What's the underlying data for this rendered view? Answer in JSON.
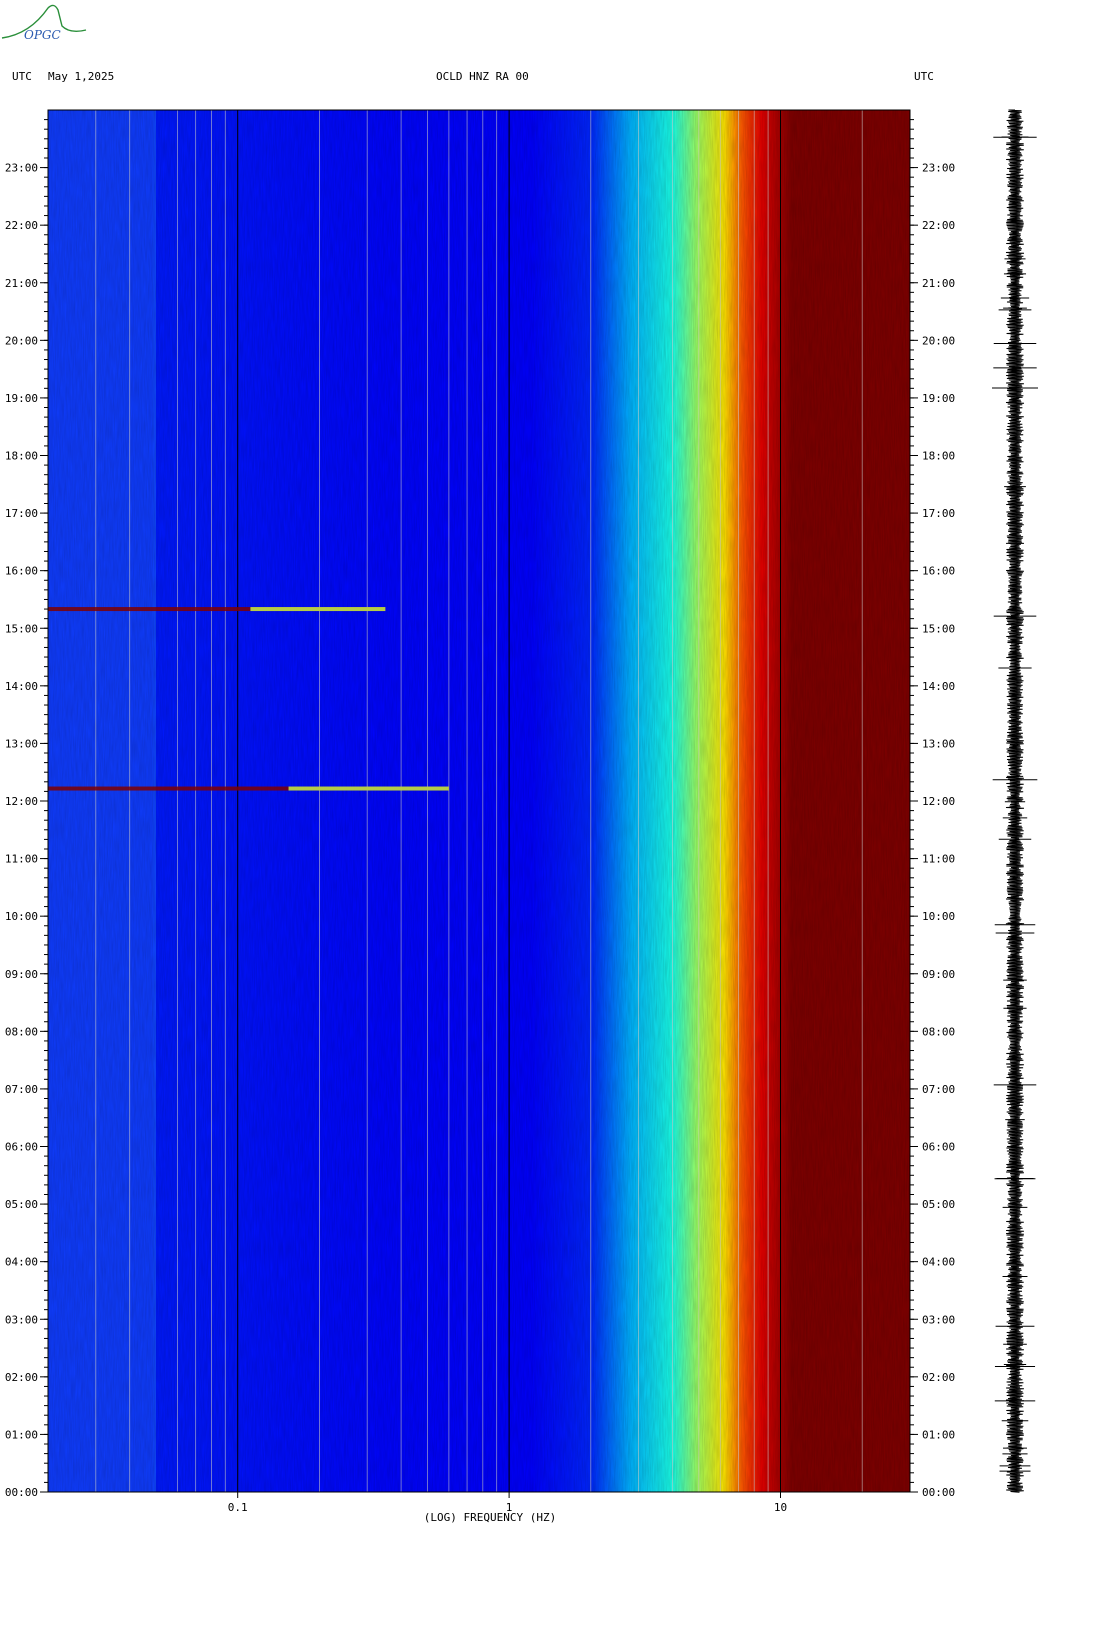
{
  "logo": {
    "text": "OPGC"
  },
  "header": {
    "left_label": "UTC",
    "date": "May 1,2025",
    "station": "OCLD HNZ RA 00",
    "right_label": "UTC"
  },
  "chart_data": {
    "type": "heatmap",
    "title": "OCLD HNZ RA 00",
    "xlabel": "(LOG) FREQUENCY (HZ)",
    "ylabel": "",
    "x_scale": "log",
    "xlim": [
      0.02,
      30
    ],
    "x_ticks": [
      {
        "value": 0.1,
        "label": "0.1"
      },
      {
        "value": 1,
        "label": "1"
      },
      {
        "value": 10,
        "label": "10"
      }
    ],
    "ylim": [
      "00:00",
      "24:00"
    ],
    "y_ticks": [
      "00:00",
      "01:00",
      "02:00",
      "03:00",
      "04:00",
      "05:00",
      "06:00",
      "07:00",
      "08:00",
      "09:00",
      "10:00",
      "11:00",
      "12:00",
      "13:00",
      "14:00",
      "15:00",
      "16:00",
      "17:00",
      "18:00",
      "19:00",
      "20:00",
      "21:00",
      "22:00",
      "23:00"
    ],
    "colormap": [
      "#00007f",
      "#0000ff",
      "#0080ff",
      "#00ffff",
      "#80ff80",
      "#ffff00",
      "#ff8000",
      "#ff0000",
      "#7f0000"
    ],
    "events": [
      {
        "time": "15:20",
        "freq_max_hz": 0.35
      },
      {
        "time": "12:13",
        "freq_max_hz": 0.6
      }
    ],
    "seismogram": {
      "time_range": [
        "00:00",
        "24:00"
      ],
      "color": "#000000"
    }
  }
}
